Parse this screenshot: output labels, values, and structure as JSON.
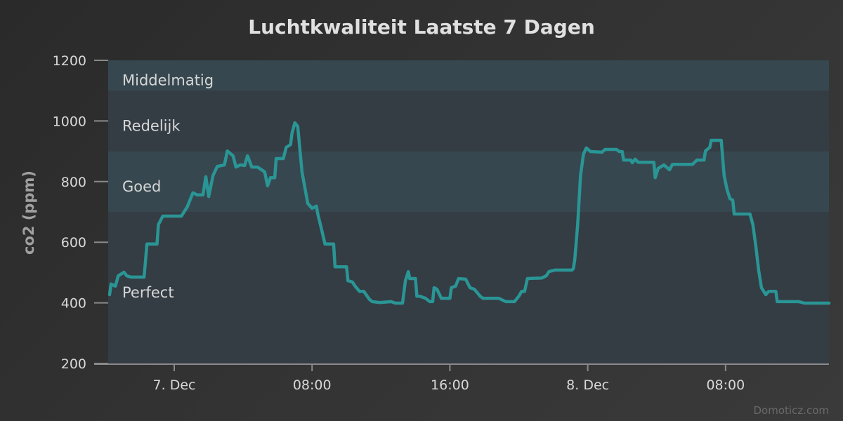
{
  "chart_data": {
    "type": "line",
    "title": "Luchtkwaliteit Laatste 7 Dagen",
    "ylabel": "co2 (ppm)",
    "xlabel": "",
    "ylim": [
      200,
      1200
    ],
    "yticks": [
      200,
      400,
      600,
      800,
      1000,
      1200
    ],
    "xlim": [
      "Dec 6 20:10",
      "Dec 8 14:00"
    ],
    "xticks": [
      {
        "at": "Dec 7 00:00",
        "label": "7. Dec"
      },
      {
        "at": "Dec 7 08:00",
        "label": "08:00"
      },
      {
        "at": "Dec 7 16:00",
        "label": "16:00"
      },
      {
        "at": "Dec 8 00:00",
        "label": "8. Dec"
      },
      {
        "at": "Dec 8 08:00",
        "label": "08:00"
      }
    ],
    "grid": false,
    "legend": "none",
    "line_color": "#2a9595",
    "plot_bands": [
      {
        "from": 200,
        "to": 700,
        "label": "Perfect",
        "color": "#343c44"
      },
      {
        "from": 700,
        "to": 900,
        "label": "Goed",
        "color": "#36474f"
      },
      {
        "from": 900,
        "to": 1100,
        "label": "Redelijk",
        "color": "#343c44"
      },
      {
        "from": 1100,
        "to": 1200,
        "label": "Middelmatig",
        "color": "#36474f"
      }
    ],
    "series": [
      {
        "values": [
          [
            "Dec 6 20:15",
            427
          ],
          [
            "Dec 6 20:20",
            462
          ],
          [
            "Dec 6 20:35",
            455
          ],
          [
            "Dec 6 20:45",
            489
          ],
          [
            "Dec 6 21:05",
            501
          ],
          [
            "Dec 6 21:15",
            489
          ],
          [
            "Dec 6 21:30",
            485
          ],
          [
            "Dec 6 22:15",
            485
          ],
          [
            "Dec 6 22:25",
            594
          ],
          [
            "Dec 6 23:00",
            594
          ],
          [
            "Dec 6 23:05",
            658
          ],
          [
            "Dec 6 23:20",
            686
          ],
          [
            "Dec 7 00:25",
            686
          ],
          [
            "Dec 7 00:45",
            716
          ],
          [
            "Dec 7 01:05",
            763
          ],
          [
            "Dec 7 01:20",
            756
          ],
          [
            "Dec 7 01:40",
            756
          ],
          [
            "Dec 7 01:50",
            816
          ],
          [
            "Dec 7 02:00",
            751
          ],
          [
            "Dec 7 02:15",
            820
          ],
          [
            "Dec 7 02:30",
            850
          ],
          [
            "Dec 7 02:55",
            855
          ],
          [
            "Dec 7 03:05",
            901
          ],
          [
            "Dec 7 03:25",
            885
          ],
          [
            "Dec 7 03:35",
            848
          ],
          [
            "Dec 7 03:50",
            855
          ],
          [
            "Dec 7 04:05",
            853
          ],
          [
            "Dec 7 04:15",
            885
          ],
          [
            "Dec 7 04:30",
            848
          ],
          [
            "Dec 7 04:50",
            848
          ],
          [
            "Dec 7 05:15",
            832
          ],
          [
            "Dec 7 05:25",
            786
          ],
          [
            "Dec 7 05:35",
            813
          ],
          [
            "Dec 7 05:50",
            813
          ],
          [
            "Dec 7 05:55",
            876
          ],
          [
            "Dec 7 06:20",
            876
          ],
          [
            "Dec 7 06:30",
            913
          ],
          [
            "Dec 7 06:45",
            922
          ],
          [
            "Dec 7 06:50",
            959
          ],
          [
            "Dec 7 07:00",
            994
          ],
          [
            "Dec 7 07:10",
            982
          ],
          [
            "Dec 7 07:25",
            832
          ],
          [
            "Dec 7 07:45",
            728
          ],
          [
            "Dec 7 08:00",
            712
          ],
          [
            "Dec 7 08:15",
            719
          ],
          [
            "Dec 7 08:20",
            693
          ],
          [
            "Dec 7 08:35",
            635
          ],
          [
            "Dec 7 08:45",
            594
          ],
          [
            "Dec 7 09:15",
            594
          ],
          [
            "Dec 7 09:20",
            519
          ],
          [
            "Dec 7 10:00",
            519
          ],
          [
            "Dec 7 10:05",
            473
          ],
          [
            "Dec 7 10:20",
            469
          ],
          [
            "Dec 7 10:30",
            455
          ],
          [
            "Dec 7 10:45",
            438
          ],
          [
            "Dec 7 11:00",
            438
          ],
          [
            "Dec 7 11:20",
            411
          ],
          [
            "Dec 7 11:30",
            404
          ],
          [
            "Dec 7 11:55",
            401
          ],
          [
            "Dec 7 12:35",
            404
          ],
          [
            "Dec 7 12:50",
            399
          ],
          [
            "Dec 7 13:15",
            399
          ],
          [
            "Dec 7 13:25",
            473
          ],
          [
            "Dec 7 13:35",
            503
          ],
          [
            "Dec 7 13:40",
            480
          ],
          [
            "Dec 7 14:00",
            480
          ],
          [
            "Dec 7 14:05",
            422
          ],
          [
            "Dec 7 14:15",
            422
          ],
          [
            "Dec 7 14:35",
            415
          ],
          [
            "Dec 7 14:50",
            404
          ],
          [
            "Dec 7 15:00",
            404
          ],
          [
            "Dec 7 15:05",
            450
          ],
          [
            "Dec 7 15:15",
            445
          ],
          [
            "Dec 7 15:30",
            415
          ],
          [
            "Dec 7 16:00",
            415
          ],
          [
            "Dec 7 16:05",
            450
          ],
          [
            "Dec 7 16:20",
            455
          ],
          [
            "Dec 7 16:30",
            480
          ],
          [
            "Dec 7 16:55",
            478
          ],
          [
            "Dec 7 17:10",
            450
          ],
          [
            "Dec 7 17:25",
            445
          ],
          [
            "Dec 7 17:45",
            422
          ],
          [
            "Dec 7 17:55",
            415
          ],
          [
            "Dec 7 18:50",
            415
          ],
          [
            "Dec 7 19:15",
            404
          ],
          [
            "Dec 7 19:45",
            404
          ],
          [
            "Dec 7 20:00",
            422
          ],
          [
            "Dec 7 20:10",
            438
          ],
          [
            "Dec 7 20:20",
            438
          ],
          [
            "Dec 7 20:30",
            480
          ],
          [
            "Dec 7 21:20",
            482
          ],
          [
            "Dec 7 21:35",
            489
          ],
          [
            "Dec 7 21:45",
            503
          ],
          [
            "Dec 7 22:05",
            508
          ],
          [
            "Dec 7 23:05",
            508
          ],
          [
            "Dec 7 23:10",
            513
          ],
          [
            "Dec 7 23:15",
            543
          ],
          [
            "Dec 7 23:25",
            658
          ],
          [
            "Dec 7 23:35",
            820
          ],
          [
            "Dec 7 23:45",
            890
          ],
          [
            "Dec 7 23:55",
            911
          ],
          [
            "Dec 8 00:10",
            899
          ],
          [
            "Dec 8 00:50",
            897
          ],
          [
            "Dec 8 01:00",
            906
          ],
          [
            "Dec 8 01:40",
            906
          ],
          [
            "Dec 8 01:50",
            899
          ],
          [
            "Dec 8 02:00",
            899
          ],
          [
            "Dec 8 02:05",
            871
          ],
          [
            "Dec 8 02:30",
            871
          ],
          [
            "Dec 8 02:35",
            862
          ],
          [
            "Dec 8 02:45",
            874
          ],
          [
            "Dec 8 02:55",
            864
          ],
          [
            "Dec 8 03:50",
            864
          ],
          [
            "Dec 8 03:55",
            813
          ],
          [
            "Dec 8 04:05",
            843
          ],
          [
            "Dec 8 04:25",
            855
          ],
          [
            "Dec 8 04:45",
            839
          ],
          [
            "Dec 8 04:55",
            857
          ],
          [
            "Dec 8 06:05",
            857
          ],
          [
            "Dec 8 06:20",
            871
          ],
          [
            "Dec 8 06:45",
            871
          ],
          [
            "Dec 8 06:50",
            901
          ],
          [
            "Dec 8 07:05",
            913
          ],
          [
            "Dec 8 07:10",
            936
          ],
          [
            "Dec 8 07:45",
            936
          ],
          [
            "Dec 8 07:55",
            820
          ],
          [
            "Dec 8 08:05",
            774
          ],
          [
            "Dec 8 08:15",
            744
          ],
          [
            "Dec 8 08:25",
            739
          ],
          [
            "Dec 8 08:30",
            693
          ],
          [
            "Dec 8 09:25",
            693
          ],
          [
            "Dec 8 09:35",
            658
          ],
          [
            "Dec 8 09:45",
            589
          ],
          [
            "Dec 8 09:55",
            508
          ],
          [
            "Dec 8 10:05",
            450
          ],
          [
            "Dec 8 10:20",
            427
          ],
          [
            "Dec 8 10:30",
            438
          ],
          [
            "Dec 8 10:55",
            438
          ],
          [
            "Dec 8 11:00",
            404
          ],
          [
            "Dec 8 12:15",
            404
          ],
          [
            "Dec 8 12:35",
            399
          ],
          [
            "Dec 8 14:00",
            399
          ]
        ]
      }
    ]
  },
  "credits": "Domoticz.com",
  "background_color": "#2f2f2f"
}
